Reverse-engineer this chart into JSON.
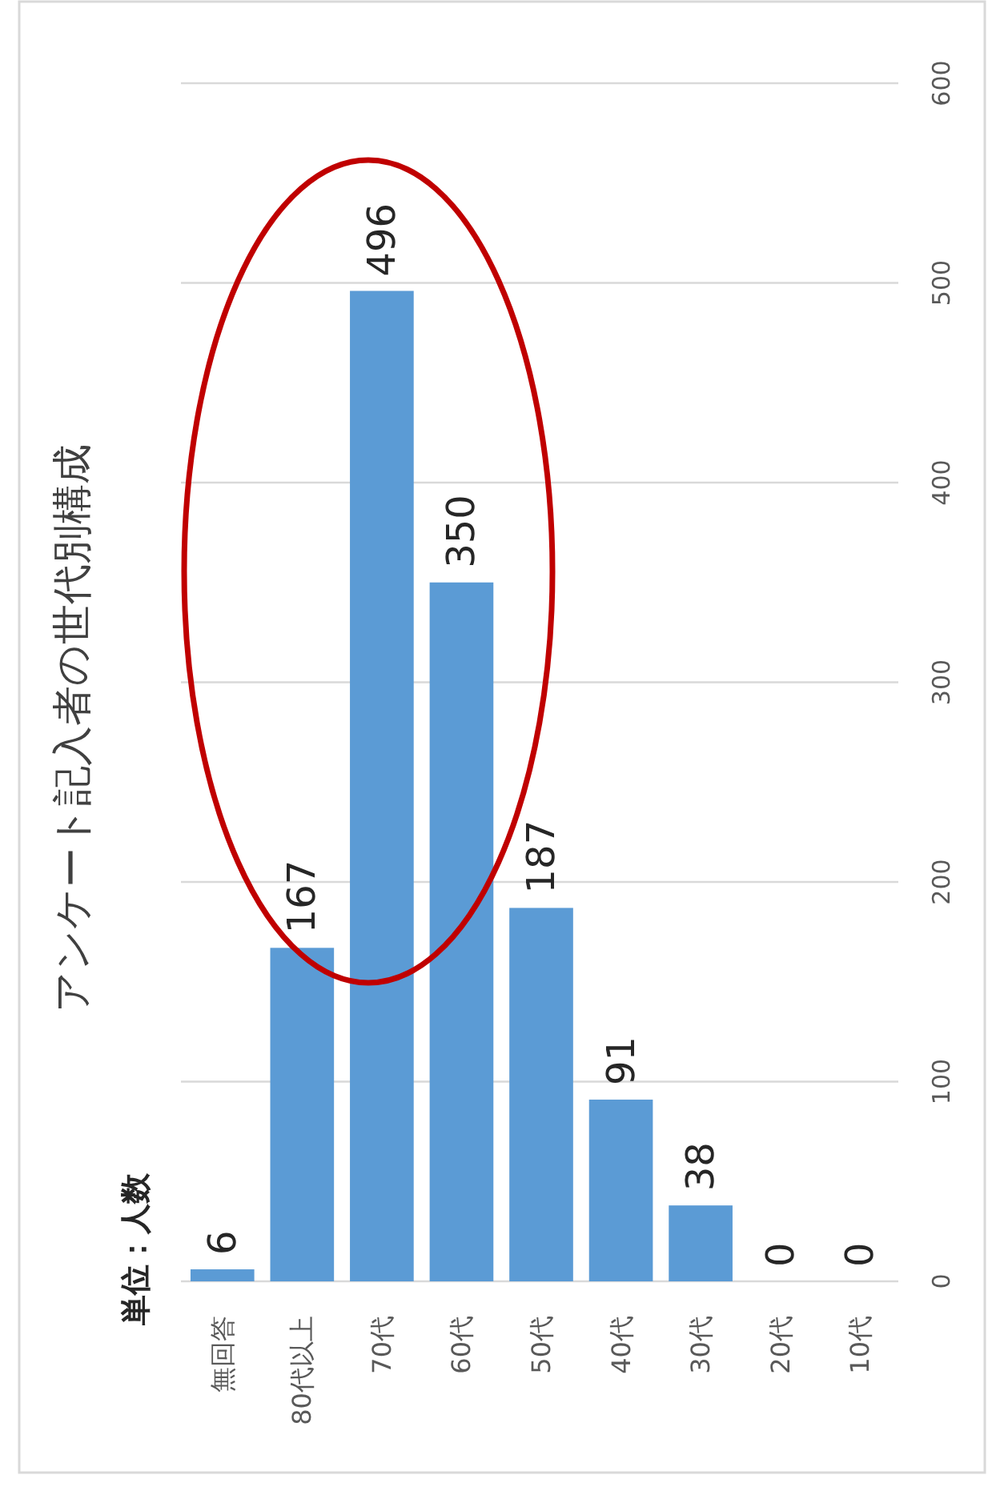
{
  "chart_data": {
    "type": "bar",
    "title": "アンケート記入者の世代別構成",
    "annotations": [
      "単位：人数"
    ],
    "categories": [
      "無回答",
      "80代以上",
      "70代",
      "60代",
      "50代",
      "40代",
      "30代",
      "20代",
      "10代"
    ],
    "values": [
      6,
      167,
      496,
      350,
      187,
      91,
      38,
      0,
      0
    ],
    "color": "#5b9bd5",
    "ylim": [
      0,
      600
    ],
    "yticks": [
      0,
      100,
      200,
      300,
      400,
      500,
      600
    ],
    "grid": "y",
    "data_labels": true
  }
}
